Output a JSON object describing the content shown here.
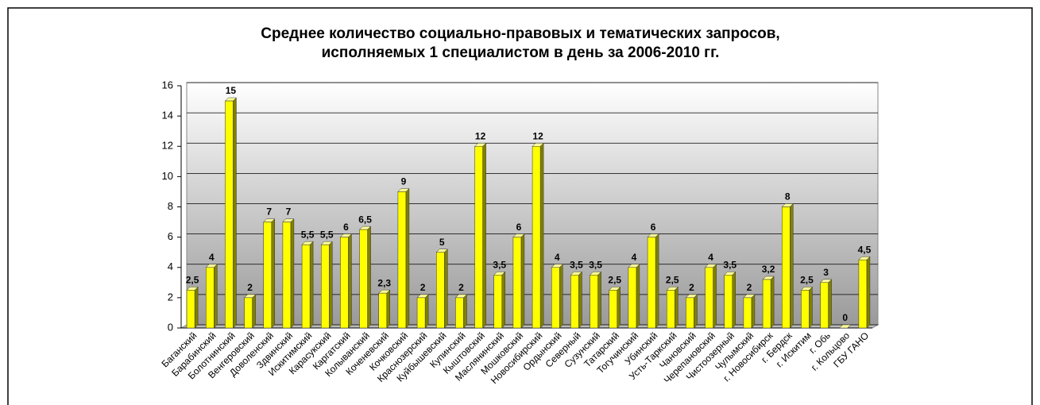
{
  "chart_data": {
    "type": "bar",
    "title": [
      "Среднее количество социально-правовых и тематических запросов,",
      "исполняемых 1 специалистом в день за 2006-2010 гг."
    ],
    "categories": [
      "Баганский",
      "Барабинский",
      "Болотнинский",
      "Венгеровский",
      "Доволенский",
      "Здвинский",
      "Искитимский",
      "Карасукский",
      "Каргатский",
      "Колыванский",
      "Коченевский",
      "Кочковский",
      "Краснозерский",
      "Куйбышевский",
      "Купинский",
      "Кыштовский",
      "Маслянинский",
      "Мошковский",
      "Новосибирский",
      "Ордынский",
      "Северный",
      "Сузунский",
      "Татарский",
      "Тогучинский",
      "Убинский",
      "Усть-Таркский",
      "Чановский",
      "Черепановский",
      "Чистоозерный",
      "Чулымский",
      "г. Новосибирск",
      "г. Бердск",
      "г. Искитим",
      "г. Обь",
      "г. Кольцово",
      "ГБУ ГАНО"
    ],
    "values": [
      2.5,
      4,
      15,
      2,
      7,
      7,
      5.5,
      5.5,
      6,
      6.5,
      2.3,
      9,
      2,
      5,
      2,
      12,
      3.5,
      6,
      12,
      4,
      3.5,
      3.5,
      2.5,
      4,
      6,
      2.5,
      2,
      4,
      3.5,
      2,
      3.2,
      8,
      2.5,
      3,
      0,
      4.5
    ],
    "value_labels": [
      "2,5",
      "4",
      "15",
      "2",
      "7",
      "7",
      "5,5",
      "5,5",
      "6",
      "6,5",
      "2,3",
      "9",
      "2",
      "5",
      "2",
      "12",
      "3,5",
      "6",
      "12",
      "4",
      "3,5",
      "3,5",
      "2,5",
      "4",
      "6",
      "2,5",
      "2",
      "4",
      "3,5",
      "2",
      "3,2",
      "8",
      "2,5",
      "3",
      "0",
      "4,5"
    ],
    "color": "#ffff00",
    "ylim": [
      0,
      16
    ],
    "yticks": [
      0,
      2,
      4,
      6,
      8,
      10,
      12,
      14,
      16
    ],
    "grid": true
  }
}
